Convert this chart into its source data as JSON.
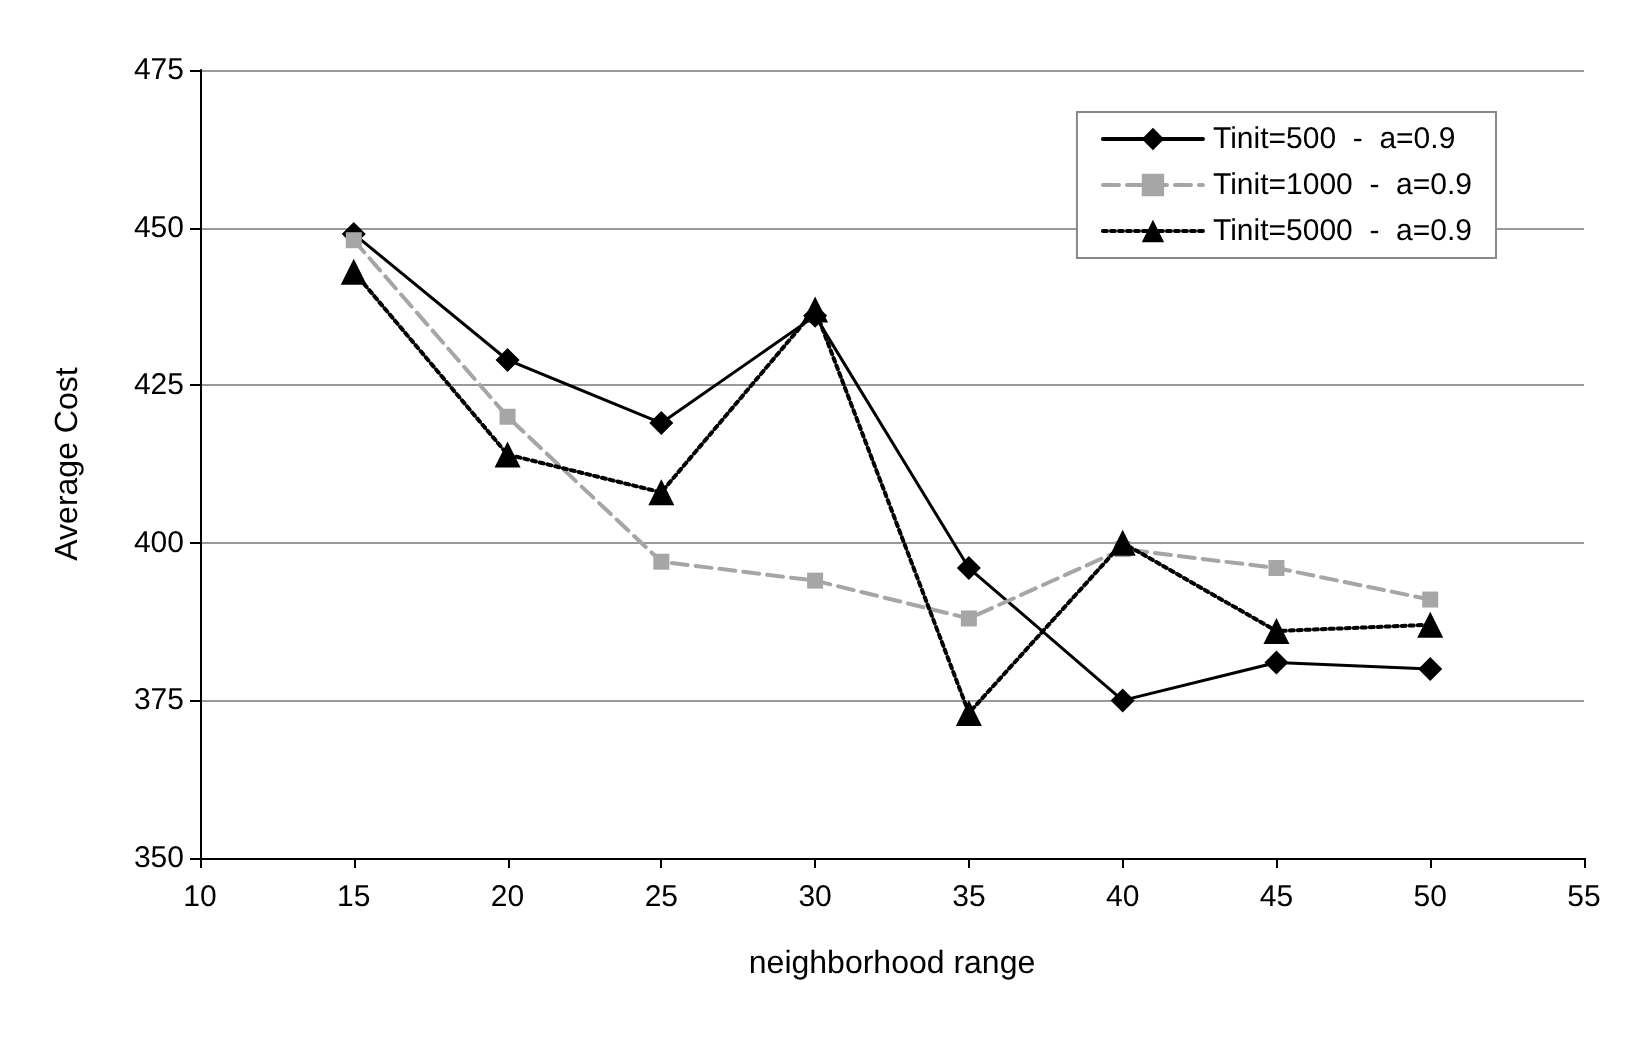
{
  "chart_data": {
    "type": "line",
    "xlabel": "neighborhood range",
    "ylabel": "Average Cost",
    "x": [
      15,
      20,
      25,
      30,
      35,
      40,
      45,
      50
    ],
    "xlim": [
      10,
      55
    ],
    "xticks": [
      10,
      15,
      20,
      25,
      30,
      35,
      40,
      45,
      50,
      55
    ],
    "ylim": [
      350,
      475
    ],
    "yticks": [
      350,
      375,
      400,
      425,
      450,
      475
    ],
    "grid": "y",
    "legend": "top right",
    "series": [
      {
        "name": "Tinit=500  -  a=0.9",
        "color": "#000000",
        "marker": "diamond",
        "line_style": "solid",
        "values": [
          449,
          429,
          419,
          436,
          396,
          375,
          381,
          380
        ]
      },
      {
        "name": "Tinit=1000  -  a=0.9",
        "color": "#a6a6a6",
        "marker": "square",
        "line_style": "dashed",
        "values": [
          448,
          420,
          397,
          394,
          388,
          399,
          396,
          391
        ]
      },
      {
        "name": "Tinit=5000  -  a=0.9",
        "color": "#000000",
        "marker": "triangle",
        "line_style": "dotted",
        "values": [
          443,
          414,
          408,
          437,
          373,
          400,
          386,
          387
        ]
      }
    ]
  }
}
